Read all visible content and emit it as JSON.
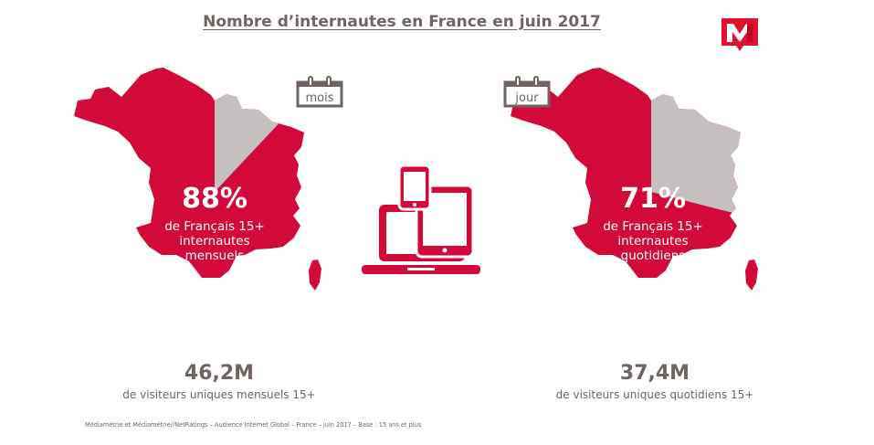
{
  "title": "Nombre d’internautes en France en juin 2017",
  "logo": {
    "letter": "M",
    "color": "#e0122f"
  },
  "colors": {
    "accent": "#d10a3a",
    "rest": "#c5bfc0",
    "text": "#6f6462"
  },
  "chart_data": [
    {
      "type": "pie",
      "period_label": "mois",
      "slices": [
        {
          "label": "de Français 15+ internautes mensuels",
          "value": 88
        },
        {
          "label": "",
          "value": 12
        }
      ],
      "percent_label": "88%",
      "description": [
        "de Français 15+",
        "internautes",
        "mensuels"
      ],
      "visitors_value": "46,2M",
      "visitors_label": "de visiteurs uniques mensuels 15+"
    },
    {
      "type": "pie",
      "period_label": "jour",
      "slices": [
        {
          "label": "de Français 15+ internautes quotidiens",
          "value": 71
        },
        {
          "label": "",
          "value": 29
        }
      ],
      "percent_label": "71%",
      "description": [
        "de Français 15+",
        "internautes",
        "quotidiens"
      ],
      "visitors_value": "37,4M",
      "visitors_label": "de visiteurs uniques quotidiens 15+"
    }
  ],
  "devices_icon": "devices-icon",
  "source": "Médiamétrie et Médiamétrie//NetRatings – Audience Internet Global – France – juin 2017 – Base : 15 ans et plus"
}
